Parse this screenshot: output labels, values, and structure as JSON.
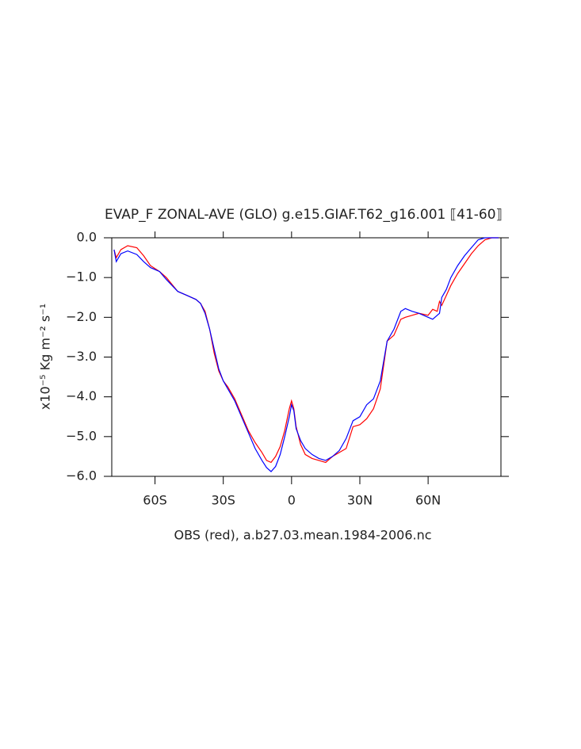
{
  "chart_data": {
    "type": "line",
    "title": "EVAP_F ZONAL-AVE (GLO) g.e15.GIAF.T62_g16.001 ⟦41-60⟧",
    "y_label": "x10⁻⁵ Kg m⁻² s⁻¹",
    "x_label": "OBS (red), a.b27.03.mean.1984-2006.nc",
    "x": [
      -78,
      -77,
      -75,
      -72,
      -68,
      -65,
      -62,
      -58,
      -55,
      -50,
      -46,
      -42,
      -40,
      -38,
      -36,
      -34,
      -32,
      -30,
      -28,
      -25,
      -22,
      -19,
      -16,
      -13,
      -11,
      -9,
      -7,
      -5,
      -3,
      -1,
      0,
      1,
      2,
      4,
      6,
      9,
      12,
      15,
      18,
      21,
      24,
      27,
      30,
      33,
      36,
      39,
      42,
      45,
      48,
      50,
      53,
      56,
      60,
      62,
      64,
      65,
      66,
      68,
      70,
      73,
      76,
      79,
      82,
      85,
      88,
      91
    ],
    "series": [
      {
        "color": "#ff0000",
        "values": [
          -0.3,
          -0.5,
          -0.3,
          -0.2,
          -0.25,
          -0.45,
          -0.7,
          -0.85,
          -1.0,
          -1.35,
          -1.45,
          -1.55,
          -1.65,
          -1.85,
          -2.3,
          -2.9,
          -3.35,
          -3.6,
          -3.75,
          -4.05,
          -4.45,
          -4.85,
          -5.15,
          -5.4,
          -5.6,
          -5.65,
          -5.5,
          -5.25,
          -4.85,
          -4.3,
          -4.1,
          -4.3,
          -4.75,
          -5.2,
          -5.45,
          -5.55,
          -5.6,
          -5.65,
          -5.5,
          -5.4,
          -5.3,
          -4.75,
          -4.7,
          -4.55,
          -4.3,
          -3.8,
          -2.6,
          -2.45,
          -2.05,
          -2.0,
          -1.95,
          -1.9,
          -1.95,
          -1.8,
          -1.85,
          -1.6,
          -1.7,
          -1.45,
          -1.2,
          -0.9,
          -0.65,
          -0.4,
          -0.2,
          -0.05,
          0,
          0
        ]
      },
      {
        "color": "#0000ff",
        "values": [
          -0.3,
          -0.6,
          -0.4,
          -0.33,
          -0.42,
          -0.6,
          -0.75,
          -0.85,
          -1.05,
          -1.35,
          -1.45,
          -1.55,
          -1.65,
          -1.9,
          -2.3,
          -2.8,
          -3.3,
          -3.6,
          -3.8,
          -4.1,
          -4.5,
          -4.9,
          -5.3,
          -5.6,
          -5.78,
          -5.88,
          -5.75,
          -5.45,
          -5.0,
          -4.5,
          -4.2,
          -4.35,
          -4.8,
          -5.1,
          -5.3,
          -5.45,
          -5.55,
          -5.6,
          -5.5,
          -5.35,
          -5.05,
          -4.6,
          -4.5,
          -4.2,
          -4.05,
          -3.6,
          -2.6,
          -2.3,
          -1.85,
          -1.78,
          -1.85,
          -1.9,
          -2.0,
          -2.05,
          -1.95,
          -1.9,
          -1.5,
          -1.3,
          -1.0,
          -0.7,
          -0.45,
          -0.25,
          -0.05,
          0,
          0,
          0
        ]
      }
    ],
    "xlim": [
      -79,
      92
    ],
    "ylim": [
      -6,
      0
    ],
    "xticks": [
      {
        "value": -60,
        "label": "60S"
      },
      {
        "value": -30,
        "label": "30S"
      },
      {
        "value": 0,
        "label": "0"
      },
      {
        "value": 30,
        "label": "30N"
      },
      {
        "value": 60,
        "label": "60N"
      }
    ],
    "yticks": [
      {
        "value": 0,
        "label": "0.0"
      },
      {
        "value": -1,
        "label": "−1.0"
      },
      {
        "value": -2,
        "label": "−2.0"
      },
      {
        "value": -3,
        "label": "−3.0"
      },
      {
        "value": -4,
        "label": "−4.0"
      },
      {
        "value": -5,
        "label": "−5.0"
      },
      {
        "value": -6,
        "label": "−6.0"
      }
    ]
  }
}
